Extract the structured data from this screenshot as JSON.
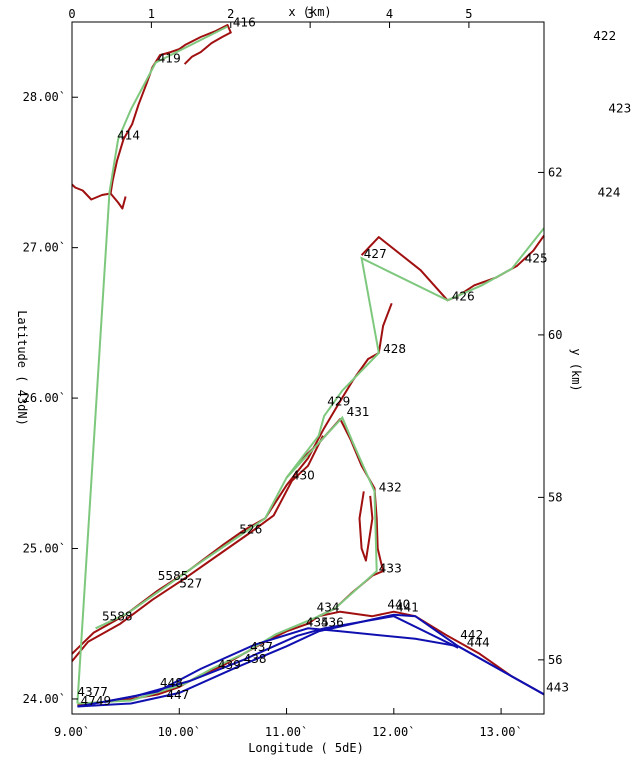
{
  "chart_data": {
    "type": "line",
    "title": "",
    "xlabel": "Longitude (  5dE)",
    "ylabel": "Latitude (  43dN)",
    "top_axis_label": "x (km)",
    "right_axis_label": "y (km)",
    "xlim": [
      9.0,
      13.4
    ],
    "ylim": [
      23.9,
      28.5
    ],
    "bottom_ticks": [
      "9.00`",
      "10.00`",
      "11.00`",
      "12.00`",
      "13.00`"
    ],
    "bottom_tick_values": [
      9.0,
      10.0,
      11.0,
      12.0,
      13.0
    ],
    "left_ticks": [
      "24.00`",
      "25.00`",
      "26.00`",
      "27.00`",
      "28.00`"
    ],
    "left_tick_values": [
      24.0,
      25.0,
      26.0,
      27.0,
      28.0
    ],
    "top_ticks": [
      "0",
      "1",
      "2",
      "3",
      "4",
      "5"
    ],
    "top_tick_lon": [
      9.0,
      9.74,
      10.48,
      11.22,
      11.96,
      12.7
    ],
    "right_ticks": [
      "56",
      "58",
      "60",
      "62"
    ],
    "right_tick_lat": [
      24.26,
      25.34,
      26.42,
      27.5
    ],
    "colors": {
      "coast": "#a01010",
      "track_green": "#7ec87e",
      "track_blue": "#1010b0"
    },
    "series": [
      {
        "style": "green",
        "points": [
          [
            9.05,
            23.97
          ],
          [
            9.35,
            27.37
          ],
          [
            9.43,
            27.72
          ],
          [
            9.55,
            27.92
          ],
          [
            9.78,
            28.23
          ],
          [
            10.45,
            28.47
          ]
        ]
      },
      {
        "style": "green",
        "points": [
          [
            9.22,
            24.47
          ],
          [
            9.52,
            24.57
          ],
          [
            10.12,
            24.87
          ],
          [
            10.47,
            25.04
          ],
          [
            10.8,
            25.2
          ],
          [
            11.0,
            25.47
          ],
          [
            11.3,
            25.75
          ],
          [
            11.35,
            25.88
          ],
          [
            11.52,
            26.05
          ],
          [
            11.86,
            26.3
          ],
          [
            11.7,
            26.93
          ],
          [
            12.5,
            26.65
          ],
          [
            12.82,
            26.75
          ],
          [
            13.1,
            26.86
          ],
          [
            13.4,
            27.13
          ]
        ]
      },
      {
        "style": "green",
        "points": [
          [
            11.0,
            25.47
          ],
          [
            11.52,
            25.87
          ],
          [
            11.62,
            25.7
          ],
          [
            11.82,
            25.38
          ],
          [
            11.84,
            24.85
          ],
          [
            11.45,
            24.6
          ],
          [
            11.27,
            24.54
          ],
          [
            10.9,
            24.43
          ],
          [
            10.6,
            24.3
          ],
          [
            10.3,
            24.2
          ],
          [
            10.05,
            24.1
          ],
          [
            9.55,
            23.99
          ],
          [
            9.05,
            23.97
          ]
        ]
      },
      {
        "style": "blue",
        "points": [
          [
            9.05,
            23.95
          ],
          [
            9.55,
            23.97
          ],
          [
            10.0,
            24.04
          ],
          [
            10.5,
            24.2
          ],
          [
            11.0,
            24.35
          ],
          [
            11.3,
            24.45
          ],
          [
            12.0,
            24.56
          ],
          [
            12.2,
            24.55
          ],
          [
            12.6,
            24.35
          ],
          [
            13.4,
            24.03
          ]
        ]
      },
      {
        "style": "blue",
        "points": [
          [
            9.05,
            23.95
          ],
          [
            9.6,
            24.02
          ],
          [
            10.1,
            24.12
          ],
          [
            10.6,
            24.26
          ],
          [
            11.1,
            24.42
          ],
          [
            11.35,
            24.47
          ],
          [
            12.0,
            24.55
          ],
          [
            12.6,
            24.34
          ]
        ]
      },
      {
        "style": "blue",
        "points": [
          [
            9.3,
            23.98
          ],
          [
            9.8,
            24.05
          ],
          [
            10.2,
            24.2
          ],
          [
            10.7,
            24.36
          ],
          [
            11.2,
            24.47
          ],
          [
            11.5,
            24.45
          ],
          [
            12.2,
            24.4
          ],
          [
            12.6,
            24.35
          ],
          [
            13.4,
            24.03
          ]
        ]
      }
    ],
    "coastline": [
      [
        [
          9.5,
          27.34
        ],
        [
          9.47,
          27.26
        ],
        [
          9.43,
          27.3
        ],
        [
          9.36,
          27.36
        ],
        [
          9.28,
          27.35
        ],
        [
          9.18,
          27.32
        ],
        [
          9.1,
          27.38
        ],
        [
          9.03,
          27.4
        ],
        [
          9.0,
          27.42
        ]
      ],
      [
        [
          9.36,
          27.36
        ],
        [
          9.38,
          27.45
        ],
        [
          9.42,
          27.58
        ],
        [
          9.48,
          27.72
        ],
        [
          9.56,
          27.82
        ],
        [
          9.62,
          27.95
        ],
        [
          9.7,
          28.1
        ],
        [
          9.75,
          28.2
        ],
        [
          9.82,
          28.28
        ],
        [
          9.92,
          28.3
        ],
        [
          10.0,
          28.32
        ],
        [
          10.06,
          28.35
        ],
        [
          10.2,
          28.4
        ],
        [
          10.34,
          28.44
        ],
        [
          10.45,
          28.48
        ],
        [
          10.48,
          28.43
        ],
        [
          10.4,
          28.4
        ],
        [
          10.3,
          28.36
        ],
        [
          10.2,
          28.3
        ],
        [
          10.12,
          28.27
        ],
        [
          10.05,
          28.22
        ]
      ],
      [
        [
          11.7,
          26.95
        ],
        [
          11.86,
          27.07
        ],
        [
          12.25,
          26.85
        ],
        [
          12.5,
          26.65
        ],
        [
          12.6,
          26.68
        ],
        [
          12.75,
          26.75
        ],
        [
          12.95,
          26.8
        ],
        [
          13.15,
          26.88
        ],
        [
          13.3,
          26.98
        ],
        [
          13.4,
          27.08
        ]
      ],
      [
        [
          9.0,
          24.3
        ],
        [
          9.2,
          24.44
        ],
        [
          9.5,
          24.56
        ],
        [
          9.8,
          24.72
        ],
        [
          10.1,
          24.86
        ],
        [
          10.4,
          25.02
        ],
        [
          10.6,
          25.12
        ],
        [
          10.8,
          25.2
        ],
        [
          11.0,
          25.42
        ],
        [
          11.2,
          25.6
        ],
        [
          11.35,
          25.8
        ],
        [
          11.5,
          25.98
        ],
        [
          11.62,
          26.12
        ],
        [
          11.76,
          26.26
        ],
        [
          11.86,
          26.3
        ],
        [
          11.9,
          26.48
        ],
        [
          11.98,
          26.63
        ]
      ],
      [
        [
          9.0,
          24.25
        ],
        [
          9.15,
          24.38
        ],
        [
          9.45,
          24.5
        ],
        [
          9.75,
          24.66
        ],
        [
          10.05,
          24.8
        ],
        [
          10.35,
          24.95
        ],
        [
          10.65,
          25.1
        ],
        [
          10.88,
          25.22
        ],
        [
          11.05,
          25.45
        ],
        [
          11.2,
          25.55
        ],
        [
          11.34,
          25.75
        ]
      ],
      [
        [
          11.0,
          25.47
        ],
        [
          11.15,
          25.6
        ],
        [
          11.3,
          25.7
        ],
        [
          11.5,
          25.86
        ],
        [
          11.6,
          25.72
        ],
        [
          11.7,
          25.55
        ],
        [
          11.82,
          25.4
        ],
        [
          11.84,
          25.2
        ],
        [
          11.85,
          25.0
        ],
        [
          11.9,
          24.85
        ],
        [
          11.8,
          24.82
        ],
        [
          11.6,
          24.7
        ],
        [
          11.45,
          24.6
        ],
        [
          11.3,
          24.55
        ],
        [
          11.2,
          24.5
        ],
        [
          11.0,
          24.45
        ],
        [
          10.8,
          24.38
        ],
        [
          10.6,
          24.3
        ],
        [
          10.4,
          24.22
        ],
        [
          10.2,
          24.16
        ],
        [
          10.0,
          24.08
        ],
        [
          9.8,
          24.03
        ],
        [
          9.55,
          24.0
        ],
        [
          9.3,
          23.98
        ],
        [
          9.05,
          23.96
        ]
      ],
      [
        [
          11.3,
          24.55
        ],
        [
          11.5,
          24.58
        ],
        [
          11.8,
          24.55
        ],
        [
          12.0,
          24.58
        ],
        [
          12.2,
          24.55
        ],
        [
          12.5,
          24.42
        ],
        [
          12.8,
          24.3
        ],
        [
          13.1,
          24.15
        ],
        [
          13.4,
          24.03
        ]
      ],
      [
        [
          11.72,
          25.38
        ],
        [
          11.68,
          25.2
        ],
        [
          11.7,
          25.0
        ],
        [
          11.74,
          24.92
        ],
        [
          11.8,
          25.2
        ],
        [
          11.78,
          25.35
        ]
      ]
    ],
    "point_labels": [
      {
        "text": "416",
        "lon": 10.5,
        "lat": 28.47
      },
      {
        "text": "419",
        "lon": 9.8,
        "lat": 28.23
      },
      {
        "text": "414",
        "lon": 9.42,
        "lat": 27.72
      },
      {
        "text": "422",
        "lon": 13.86,
        "lat": 28.38
      },
      {
        "text": "423",
        "lon": 14.0,
        "lat": 27.9
      },
      {
        "text": "424",
        "lon": 13.9,
        "lat": 27.34
      },
      {
        "text": "427",
        "lon": 11.72,
        "lat": 26.93
      },
      {
        "text": "425",
        "lon": 13.22,
        "lat": 26.9
      },
      {
        "text": "426",
        "lon": 12.54,
        "lat": 26.65
      },
      {
        "text": "428",
        "lon": 11.9,
        "lat": 26.3
      },
      {
        "text": "429",
        "lon": 11.38,
        "lat": 25.95
      },
      {
        "text": "431",
        "lon": 11.56,
        "lat": 25.88
      },
      {
        "text": "430",
        "lon": 11.05,
        "lat": 25.46
      },
      {
        "text": "432",
        "lon": 11.86,
        "lat": 25.38
      },
      {
        "text": "526",
        "lon": 10.56,
        "lat": 25.1
      },
      {
        "text": "5585",
        "lon": 9.8,
        "lat": 24.79
      },
      {
        "text": "527",
        "lon": 10.0,
        "lat": 24.74
      },
      {
        "text": "433",
        "lon": 11.86,
        "lat": 24.84
      },
      {
        "text": "5588",
        "lon": 9.28,
        "lat": 24.52
      },
      {
        "text": "434",
        "lon": 11.28,
        "lat": 24.58
      },
      {
        "text": "440",
        "lon": 11.94,
        "lat": 24.6
      },
      {
        "text": "441",
        "lon": 12.02,
        "lat": 24.58
      },
      {
        "text": "435",
        "lon": 11.18,
        "lat": 24.48
      },
      {
        "text": "436",
        "lon": 11.32,
        "lat": 24.48
      },
      {
        "text": "442",
        "lon": 12.62,
        "lat": 24.4
      },
      {
        "text": "444",
        "lon": 12.68,
        "lat": 24.35
      },
      {
        "text": "437",
        "lon": 10.66,
        "lat": 24.32
      },
      {
        "text": "438",
        "lon": 10.6,
        "lat": 24.24
      },
      {
        "text": "439",
        "lon": 10.36,
        "lat": 24.2
      },
      {
        "text": "443",
        "lon": 13.42,
        "lat": 24.05
      },
      {
        "text": "4377",
        "lon": 9.05,
        "lat": 24.02
      },
      {
        "text": "4749",
        "lon": 9.08,
        "lat": 23.96
      },
      {
        "text": "448",
        "lon": 9.82,
        "lat": 24.08
      },
      {
        "text": "447",
        "lon": 9.88,
        "lat": 24.0
      }
    ]
  }
}
